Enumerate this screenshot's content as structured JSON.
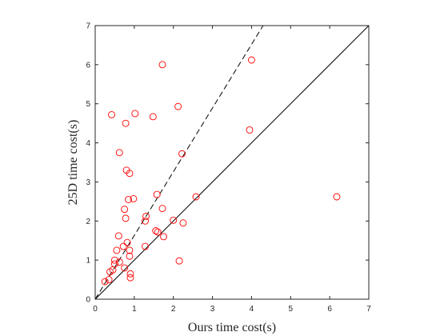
{
  "chart_data": {
    "type": "scatter",
    "xlabel": "Ours time cost(s)",
    "ylabel": "25D time cost(s)",
    "xlim": [
      0,
      7
    ],
    "ylim": [
      0,
      7
    ],
    "xticks": [
      "0",
      "1",
      "2",
      "3",
      "4",
      "5",
      "6",
      "7"
    ],
    "yticks": [
      "0",
      "1",
      "2",
      "3",
      "4",
      "5",
      "6",
      "7"
    ],
    "grid": false,
    "marker": "circle-open",
    "marker_color": "#ff0000",
    "points": [
      {
        "x": 0.25,
        "y": 0.45
      },
      {
        "x": 0.35,
        "y": 0.5
      },
      {
        "x": 0.38,
        "y": 0.7
      },
      {
        "x": 0.45,
        "y": 0.75
      },
      {
        "x": 0.5,
        "y": 0.9
      },
      {
        "x": 0.5,
        "y": 1.0
      },
      {
        "x": 0.55,
        "y": 1.25
      },
      {
        "x": 0.62,
        "y": 0.95
      },
      {
        "x": 0.6,
        "y": 1.62
      },
      {
        "x": 0.75,
        "y": 0.8
      },
      {
        "x": 0.72,
        "y": 1.35
      },
      {
        "x": 0.82,
        "y": 1.45
      },
      {
        "x": 0.88,
        "y": 1.25
      },
      {
        "x": 0.88,
        "y": 1.1
      },
      {
        "x": 0.9,
        "y": 0.65
      },
      {
        "x": 0.9,
        "y": 0.55
      },
      {
        "x": 0.78,
        "y": 2.07
      },
      {
        "x": 0.75,
        "y": 2.3
      },
      {
        "x": 0.85,
        "y": 2.55
      },
      {
        "x": 0.98,
        "y": 2.57
      },
      {
        "x": 0.8,
        "y": 3.3
      },
      {
        "x": 0.88,
        "y": 3.22
      },
      {
        "x": 0.62,
        "y": 3.75
      },
      {
        "x": 0.42,
        "y": 4.72
      },
      {
        "x": 0.78,
        "y": 4.5
      },
      {
        "x": 1.02,
        "y": 4.75
      },
      {
        "x": 1.28,
        "y": 2.0
      },
      {
        "x": 1.3,
        "y": 2.12
      },
      {
        "x": 1.28,
        "y": 1.35
      },
      {
        "x": 1.55,
        "y": 1.75
      },
      {
        "x": 1.6,
        "y": 1.72
      },
      {
        "x": 1.58,
        "y": 2.68
      },
      {
        "x": 1.72,
        "y": 2.32
      },
      {
        "x": 1.75,
        "y": 1.6
      },
      {
        "x": 1.48,
        "y": 4.67
      },
      {
        "x": 1.72,
        "y": 6.0
      },
      {
        "x": 2.0,
        "y": 2.02
      },
      {
        "x": 2.12,
        "y": 4.93
      },
      {
        "x": 2.15,
        "y": 0.98
      },
      {
        "x": 2.22,
        "y": 3.72
      },
      {
        "x": 2.25,
        "y": 1.95
      },
      {
        "x": 2.58,
        "y": 2.62
      },
      {
        "x": 3.95,
        "y": 4.33
      },
      {
        "x": 4.0,
        "y": 6.12
      },
      {
        "x": 6.18,
        "y": 2.62
      }
    ],
    "reference_lines": [
      {
        "style": "solid",
        "slope": 1.0
      },
      {
        "style": "dashed",
        "slope": 1.63
      }
    ]
  }
}
